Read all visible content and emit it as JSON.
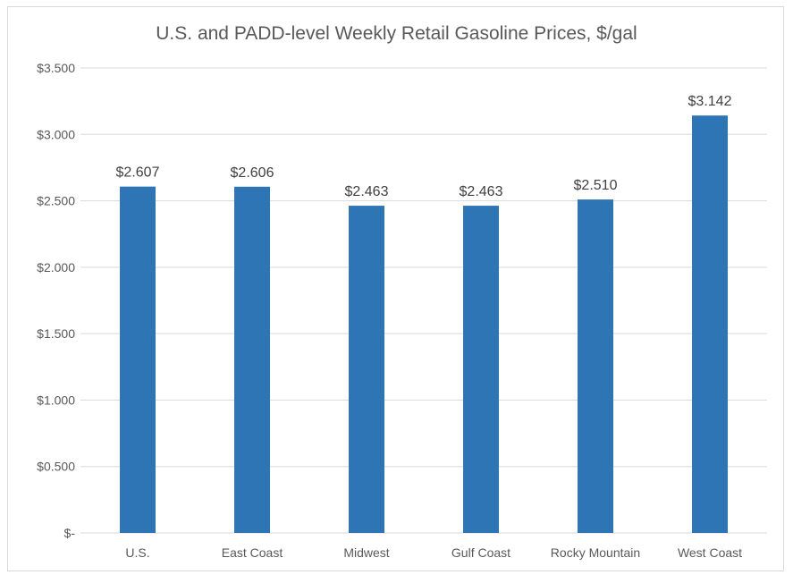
{
  "chart_data": {
    "type": "bar",
    "title": "U.S. and PADD-level Weekly Retail Gasoline Prices, $/gal",
    "categories": [
      "U.S.",
      "East Coast",
      "Midwest",
      "Gulf Coast",
      "Rocky Mountain",
      "West Coast"
    ],
    "values": [
      2.607,
      2.606,
      2.463,
      2.463,
      2.51,
      3.142
    ],
    "data_labels": [
      "$2.607",
      "$2.606",
      "$2.463",
      "$2.463",
      "$2.510",
      "$3.142"
    ],
    "ylim": [
      0,
      3.5
    ],
    "yticks": [
      0,
      0.5,
      1.0,
      1.5,
      2.0,
      2.5,
      3.0,
      3.5
    ],
    "ytick_labels": [
      "$-",
      "$0.500",
      "$1.000",
      "$1.500",
      "$2.000",
      "$2.500",
      "$3.000",
      "$3.500"
    ],
    "grid": true,
    "legend": "none",
    "colors": {
      "bar": "#2e75b6",
      "grid": "#d9d9d9"
    }
  }
}
